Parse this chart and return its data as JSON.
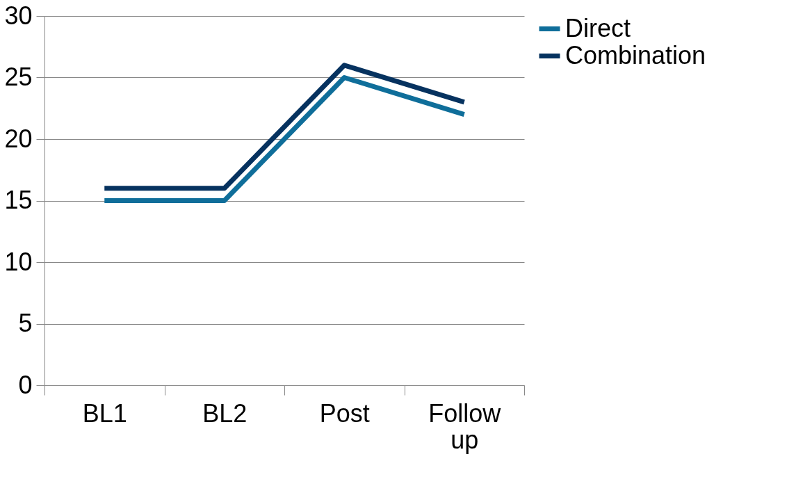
{
  "chart_data": {
    "type": "line",
    "categories": [
      "BL1",
      "BL2",
      "Post",
      "Follow up"
    ],
    "series": [
      {
        "name": "Direct",
        "color": "#0f6e9a",
        "values": [
          15,
          15,
          25,
          22
        ]
      },
      {
        "name": "Combination",
        "color": "#06325f",
        "values": [
          16,
          16,
          26,
          23
        ]
      }
    ],
    "ylim": [
      0,
      30
    ],
    "yticks": [
      0,
      5,
      10,
      15,
      20,
      25,
      30
    ],
    "grid": "y",
    "legend": "right",
    "marker": "none",
    "line_style": "solid"
  }
}
